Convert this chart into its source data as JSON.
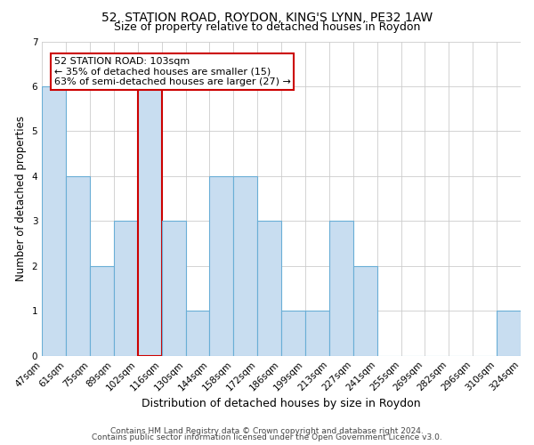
{
  "title_line1": "52, STATION ROAD, ROYDON, KING'S LYNN, PE32 1AW",
  "title_line2": "Size of property relative to detached houses in Roydon",
  "xlabel": "Distribution of detached houses by size in Roydon",
  "ylabel": "Number of detached properties",
  "bin_labels": [
    "47sqm",
    "61sqm",
    "75sqm",
    "89sqm",
    "102sqm",
    "116sqm",
    "130sqm",
    "144sqm",
    "158sqm",
    "172sqm",
    "186sqm",
    "199sqm",
    "213sqm",
    "227sqm",
    "241sqm",
    "255sqm",
    "269sqm",
    "282sqm",
    "296sqm",
    "310sqm",
    "324sqm"
  ],
  "bin_edges": [
    0,
    1,
    2,
    3,
    4,
    5,
    6,
    7,
    8,
    9,
    10,
    11,
    12,
    13,
    14,
    15,
    16,
    17,
    18,
    19,
    20
  ],
  "bar_heights": [
    6,
    4,
    2,
    3,
    6,
    3,
    1,
    4,
    4,
    3,
    1,
    1,
    3,
    2,
    0,
    0,
    0,
    0,
    0,
    1
  ],
  "bar_color": "#c8ddf0",
  "bar_edge_color": "#6aaed6",
  "highlight_bar_index": 4,
  "highlight_bar_edge_color": "#cc0000",
  "ylim": [
    0,
    7
  ],
  "yticks": [
    0,
    1,
    2,
    3,
    4,
    5,
    6,
    7
  ],
  "annotation_line1": "52 STATION ROAD: 103sqm",
  "annotation_line2": "← 35% of detached houses are smaller (15)",
  "annotation_line3": "63% of semi-detached houses are larger (27) →",
  "annotation_box_facecolor": "#ffffff",
  "annotation_box_edgecolor": "#cc0000",
  "footer_line1": "Contains HM Land Registry data © Crown copyright and database right 2024.",
  "footer_line2": "Contains public sector information licensed under the Open Government Licence v3.0.",
  "background_color": "#ffffff",
  "grid_color": "#cccccc",
  "title_fontsize": 10,
  "subtitle_fontsize": 9,
  "xlabel_fontsize": 9,
  "ylabel_fontsize": 8.5,
  "tick_fontsize": 7.5,
  "annotation_fontsize": 8,
  "footer_fontsize": 6.5
}
